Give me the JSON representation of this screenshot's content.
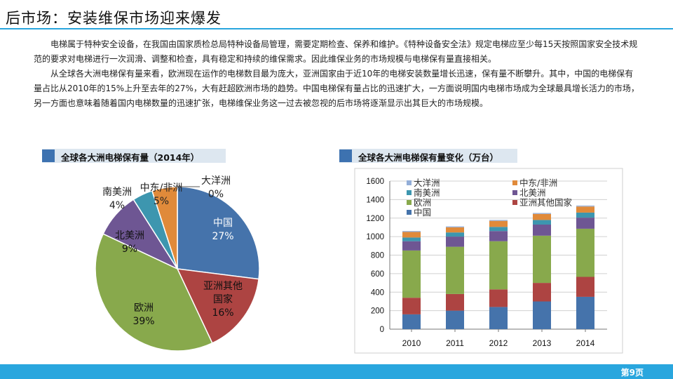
{
  "slide": {
    "title": "后市场：安装维保市场迎来爆发",
    "paragraphs": [
      "电梯属于特种安全设备，在我国由国家质检总局特种设备局管理，需要定期检查、保养和维护。《特种设备安全法》规定电梯应至少每15天按照国家安全技术规范的要求对电梯进行一次润滑、调整和检查，具有稳定和持续的维保需求。因此维保业务的市场规模与电梯保有量直接相关。",
      "从全球各大洲电梯保有量来看，欧洲现在运作的电梯数目最为庞大，亚洲国家由于近10年的电梯安装数量增长迅速，保有量不断攀升。其中，中国的电梯保有量占比从2010年的15%上升至去年的27%，大有赶超欧洲市场的趋势。中国电梯保有量占比的迅速扩大，一方面说明国内电梯市场成为全球最具增长活力的市场，另一方面也意味着随着国内电梯数量的迅速扩张，电梯维保业务这一过去被忽视的后市场将逐渐显示出其巨大的市场规模。"
    ],
    "page_number": "第9页"
  },
  "chart_data": [
    {
      "type": "pie",
      "title": "全球各大洲电梯保有量（2014年）",
      "slices": [
        {
          "name": "中国",
          "value": 27,
          "label": "27%",
          "color": "#4573ab"
        },
        {
          "name": "亚洲其他国家",
          "value": 16,
          "label": "16%",
          "color": "#ad4442"
        },
        {
          "name": "欧洲",
          "value": 39,
          "label": "39%",
          "color": "#88a94c"
        },
        {
          "name": "北美洲",
          "value": 9,
          "label": "9%",
          "color": "#6e5693"
        },
        {
          "name": "南美洲",
          "value": 4,
          "label": "4%",
          "color": "#3d96af"
        },
        {
          "name": "中东/非洲",
          "value": 5,
          "label": "5%",
          "color": "#e08a3a"
        },
        {
          "name": "大洋洲",
          "value": 0,
          "label": "0%",
          "color": "#93aed8"
        }
      ]
    },
    {
      "type": "bar",
      "stacked": true,
      "title": "全球各大洲电梯保有量变化（万台）",
      "categories": [
        "2010",
        "2011",
        "2012",
        "2013",
        "2014"
      ],
      "ylim": [
        0,
        1600
      ],
      "yticks": [
        0,
        200,
        400,
        600,
        800,
        1000,
        1200,
        1400,
        1600
      ],
      "grid": true,
      "legend_position": "top",
      "series": [
        {
          "name": "中国",
          "color": "#4573ab",
          "values": [
            160,
            200,
            240,
            300,
            350
          ]
        },
        {
          "name": "亚洲其他国家",
          "color": "#ad4442",
          "values": [
            180,
            180,
            190,
            200,
            215
          ]
        },
        {
          "name": "欧洲",
          "color": "#88a94c",
          "values": [
            510,
            510,
            520,
            510,
            520
          ]
        },
        {
          "name": "北美洲",
          "color": "#6e5693",
          "values": [
            100,
            110,
            110,
            120,
            120
          ]
        },
        {
          "name": "南美洲",
          "color": "#3d96af",
          "values": [
            40,
            45,
            45,
            50,
            55
          ]
        },
        {
          "name": "中东/非洲",
          "color": "#e08a3a",
          "values": [
            60,
            55,
            65,
            65,
            65
          ]
        },
        {
          "name": "大洋洲",
          "color": "#93aed8",
          "values": [
            10,
            10,
            10,
            10,
            10
          ]
        }
      ],
      "legend_order": [
        "大洋洲",
        "中东/非洲",
        "南美洲",
        "北美洲",
        "欧洲",
        "亚洲其他国家",
        "中国"
      ]
    }
  ]
}
